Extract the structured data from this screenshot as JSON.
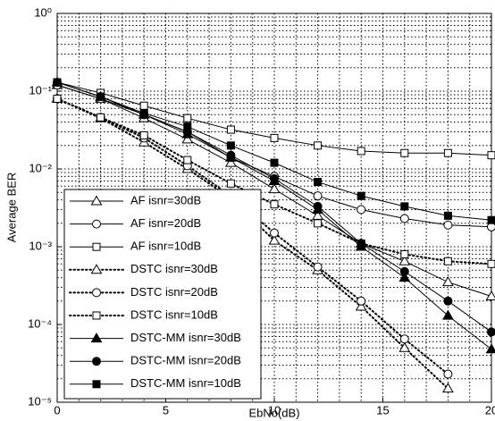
{
  "chart_data": {
    "type": "line",
    "xlabel": "EbNo(dB)",
    "ylabel": "Average BER",
    "x": [
      0,
      2,
      4,
      6,
      8,
      10,
      12,
      14,
      16,
      18,
      20
    ],
    "xlim": [
      0,
      20
    ],
    "xticks": [
      0,
      5,
      10,
      15,
      20
    ],
    "ylim": [
      1e-05,
      1
    ],
    "log_y": true,
    "yticks": [
      {
        "value": 1,
        "label": "10⁰"
      },
      {
        "value": 0.1,
        "label": "10⁻¹"
      },
      {
        "value": 0.01,
        "label": "10⁻²"
      },
      {
        "value": 0.001,
        "label": "10⁻³"
      },
      {
        "value": 0.0001,
        "label": "10⁻⁴"
      },
      {
        "value": 1e-05,
        "label": "10⁻⁵"
      }
    ],
    "grid": true,
    "minor_grid": true,
    "legend": "lower left",
    "series": [
      {
        "name": "AF isnr=30dB",
        "color": "#000000",
        "marker": "triangle",
        "filled": false,
        "linestyle": "solid",
        "values": [
          0.12,
          0.08,
          0.045,
          0.024,
          0.012,
          0.0055,
          0.0025,
          0.0011,
          0.00065,
          0.00035,
          0.00023
        ]
      },
      {
        "name": "AF isnr=20dB",
        "color": "#000000",
        "marker": "circle",
        "filled": false,
        "linestyle": "solid",
        "values": [
          0.12,
          0.08,
          0.05,
          0.03,
          0.014,
          0.008,
          0.0045,
          0.003,
          0.0023,
          0.0019,
          0.0018
        ]
      },
      {
        "name": "AF isnr=10dB",
        "color": "#000000",
        "marker": "square",
        "filled": false,
        "linestyle": "solid",
        "values": [
          0.13,
          0.095,
          0.065,
          0.045,
          0.032,
          0.025,
          0.02,
          0.017,
          0.016,
          0.016,
          0.015
        ]
      },
      {
        "name": "DSTC isnr=30dB",
        "color": "#000000",
        "marker": "triangle",
        "filled": false,
        "linestyle": "dotted",
        "values": [
          0.08,
          0.045,
          0.022,
          0.01,
          0.0042,
          0.0012,
          0.0005,
          0.00017,
          5e-05,
          1.5e-05,
          null
        ]
      },
      {
        "name": "DSTC isnr=20dB",
        "color": "#000000",
        "marker": "circle",
        "filled": false,
        "linestyle": "dotted",
        "values": [
          0.08,
          0.046,
          0.025,
          0.011,
          0.0045,
          0.0015,
          0.00055,
          0.0002,
          6.5e-05,
          2.3e-05,
          null
        ]
      },
      {
        "name": "DSTC isnr=10dB",
        "color": "#000000",
        "marker": "square",
        "filled": false,
        "linestyle": "dotted",
        "values": [
          0.08,
          0.046,
          0.027,
          0.013,
          0.0065,
          0.0035,
          0.002,
          0.0011,
          0.0008,
          0.00065,
          0.0006
        ]
      },
      {
        "name": "DSTC-MM isnr=30dB",
        "color": "#000000",
        "marker": "triangle",
        "filled": true,
        "linestyle": "solid",
        "values": [
          0.13,
          0.085,
          0.05,
          0.028,
          0.014,
          0.007,
          0.003,
          0.001,
          0.0004,
          0.00013,
          4.8e-05
        ]
      },
      {
        "name": "DSTC-MM isnr=20dB",
        "color": "#000000",
        "marker": "circle",
        "filled": true,
        "linestyle": "solid",
        "values": [
          0.13,
          0.085,
          0.05,
          0.03,
          0.015,
          0.0075,
          0.0033,
          0.0011,
          0.00048,
          0.0002,
          8e-05
        ]
      },
      {
        "name": "DSTC-MM isnr=10dB",
        "color": "#000000",
        "marker": "square",
        "filled": true,
        "linestyle": "solid",
        "values": [
          0.13,
          0.085,
          0.052,
          0.035,
          0.02,
          0.012,
          0.0068,
          0.0045,
          0.0033,
          0.0025,
          0.0022
        ]
      }
    ]
  }
}
